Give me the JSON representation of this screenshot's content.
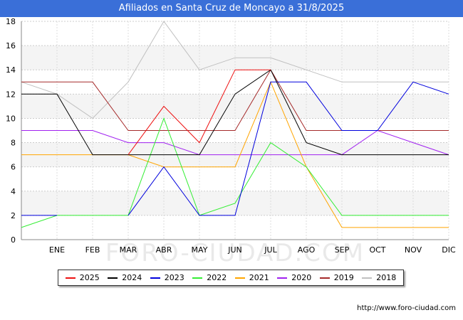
{
  "chart_data": {
    "type": "line",
    "title": "Afiliados en Santa Cruz de Moncayo a 31/8/2025",
    "categories": [
      "",
      "ENE",
      "FEB",
      "MAR",
      "ABR",
      "MAY",
      "JUN",
      "JUL",
      "AGO",
      "SEP",
      "OCT",
      "NOV",
      "DIC"
    ],
    "ylim": [
      0,
      18
    ],
    "yticks": [
      0,
      2,
      4,
      6,
      8,
      10,
      12,
      14,
      16,
      18
    ],
    "watermark": "FORO-CIUDAD.COM",
    "series": [
      {
        "name": "2018",
        "color": "#c0c0c0",
        "values": [
          13,
          12,
          10,
          13,
          18,
          14,
          15,
          15,
          14,
          13,
          13,
          13,
          13
        ]
      },
      {
        "name": "2019",
        "color": "#a52a2a",
        "values": [
          13,
          13,
          13,
          9,
          9,
          9,
          9,
          14,
          9,
          9,
          9,
          9,
          9
        ]
      },
      {
        "name": "2020",
        "color": "#a020f0",
        "values": [
          9,
          9,
          9,
          8,
          8,
          7,
          7,
          7,
          7,
          7,
          9,
          8,
          7
        ]
      },
      {
        "name": "2021",
        "color": "#ffa500",
        "values": [
          7,
          7,
          7,
          7,
          6,
          6,
          6,
          13,
          6,
          1,
          1,
          1,
          1
        ]
      },
      {
        "name": "2022",
        "color": "#33ee33",
        "values": [
          1,
          2,
          2,
          2,
          10,
          2,
          3,
          8,
          6,
          2,
          2,
          2,
          2
        ]
      },
      {
        "name": "2023",
        "color": "#0000dd",
        "values": [
          2,
          2,
          null,
          2,
          6,
          2,
          2,
          13,
          13,
          9,
          9,
          13,
          12
        ]
      },
      {
        "name": "2024",
        "color": "#000000",
        "values": [
          12,
          12,
          7,
          7,
          7,
          7,
          12,
          14,
          8,
          7,
          7,
          7,
          7
        ]
      },
      {
        "name": "2025",
        "color": "#ee1111",
        "values": [
          null,
          null,
          null,
          7,
          11,
          8,
          14,
          14,
          null,
          null,
          null,
          null,
          null
        ]
      }
    ],
    "legend_order": [
      "2025",
      "2024",
      "2023",
      "2022",
      "2021",
      "2020",
      "2019",
      "2018"
    ]
  },
  "footer": {
    "url": "http://www.foro-ciudad.com"
  }
}
